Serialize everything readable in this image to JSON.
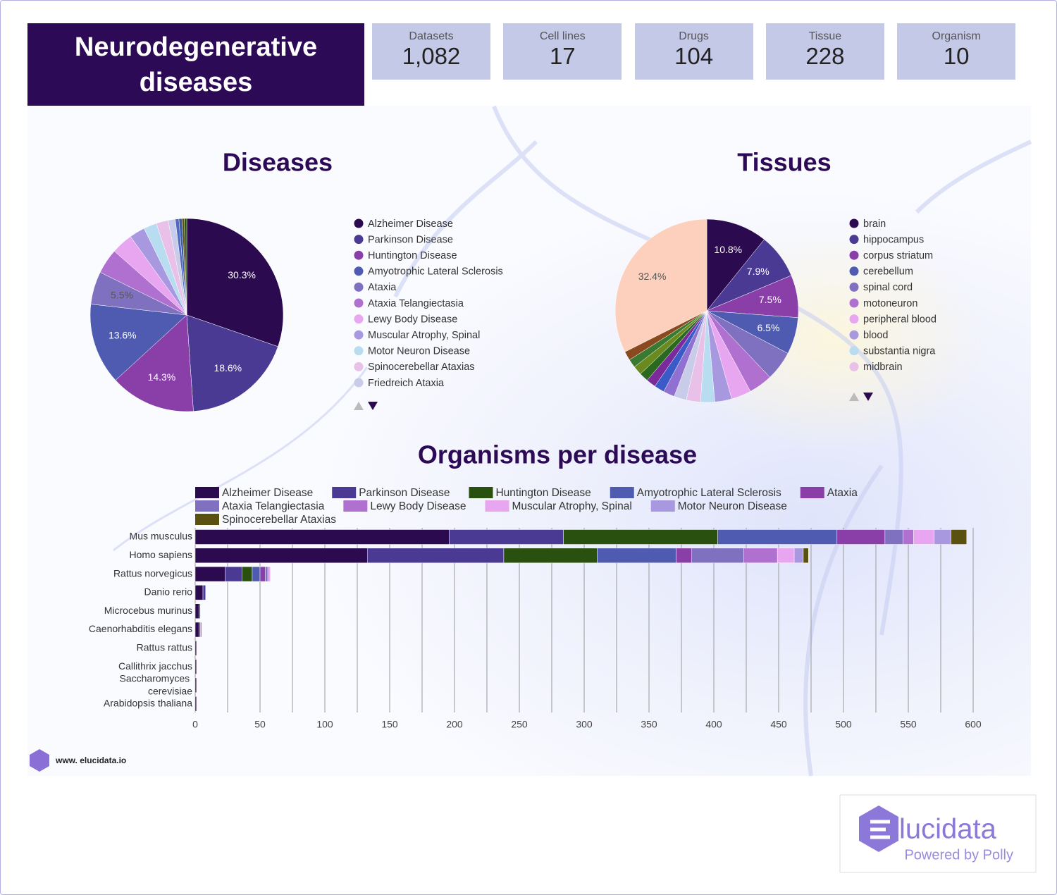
{
  "header": {
    "title": "Neurodegenerative diseases"
  },
  "stats": [
    {
      "label": "Datasets",
      "value": "1,082"
    },
    {
      "label": "Cell lines",
      "value": "17"
    },
    {
      "label": "Drugs",
      "value": "104"
    },
    {
      "label": "Tissue",
      "value": "228"
    },
    {
      "label": "Organism",
      "value": "10"
    }
  ],
  "chart_data": [
    {
      "type": "pie",
      "title": "Diseases",
      "categories": [
        "Alzheimer Disease",
        "Parkinson Disease",
        "Huntington Disease",
        "Amyotrophic Lateral Sclerosis",
        "Ataxia",
        "Ataxia Telangiectasia",
        "Lewy Body Disease",
        "Muscular Atrophy, Spinal",
        "Motor Neuron Disease",
        "Spinocerebellar Ataxias",
        "Friedreich Ataxia",
        null,
        null,
        null,
        null
      ],
      "values": [
        30.3,
        18.6,
        14.3,
        13.6,
        5.5,
        4.2,
        3.6,
        2.6,
        2.2,
        2.0,
        1.2,
        0.6,
        0.5,
        0.4,
        0.4
      ],
      "value_labels": [
        "30.3%",
        "18.6%",
        "14.3%",
        "13.6%",
        "5.5%",
        null,
        null,
        null,
        null,
        null,
        null,
        null,
        null,
        null,
        null
      ],
      "colors": [
        "#2b0a4f",
        "#4b3a94",
        "#8a3fa8",
        "#4f5bb0",
        "#8070c0",
        "#b070d0",
        "#e8a6f0",
        "#a898e0",
        "#b8dcf0",
        "#e8c0e8",
        "#c8cce8",
        "#4f6ac0",
        "#3a5aa8",
        "#5a5010",
        "#2a5010"
      ]
    },
    {
      "type": "pie",
      "title": "Tissues",
      "categories": [
        "brain",
        "hippocampus",
        "corpus striatum",
        "cerebellum",
        "spinal cord",
        "motoneuron",
        "peripheral blood",
        "blood",
        "substantia nigra",
        "midbrain",
        null,
        null,
        null,
        null,
        null,
        null,
        null,
        null,
        null
      ],
      "values": [
        10.8,
        7.9,
        7.5,
        6.5,
        5.2,
        4.2,
        3.5,
        3.0,
        2.5,
        2.5,
        2.2,
        2.0,
        1.8,
        1.7,
        1.6,
        1.6,
        1.5,
        1.6,
        32.4
      ],
      "value_labels": [
        "10.8%",
        "7.9%",
        "7.5%",
        "6.5%",
        null,
        null,
        null,
        null,
        null,
        null,
        null,
        null,
        null,
        null,
        null,
        null,
        null,
        null,
        "32.4%"
      ],
      "colors": [
        "#2b0a4f",
        "#4b3a94",
        "#8a3fa8",
        "#4f5bb0",
        "#8070c0",
        "#b070d0",
        "#e8a6f0",
        "#a898e0",
        "#b8dcf0",
        "#e8c0e8",
        "#c8cce8",
        "#9070d0",
        "#3a5ac8",
        "#7a2a9a",
        "#2a6a20",
        "#6a8a20",
        "#3a7a30",
        "#8a4a20",
        "#fcd0bc"
      ]
    },
    {
      "type": "bar",
      "orientation": "horizontal",
      "stacked": true,
      "title": "Organisms per disease",
      "categories": [
        "Mus musculus",
        "Homo sapiens",
        "Rattus norvegicus",
        "Danio rerio",
        "Microcebus murinus",
        "Caenorhabditis elegans",
        "Rattus rattus",
        "Callithrix jacchus",
        "Saccharomyces cerevisiae",
        "Arabidopsis thaliana"
      ],
      "series": [
        {
          "name": "Alzheimer Disease",
          "color": "#2b0a4f",
          "values": [
            196,
            133,
            23,
            6,
            3,
            3,
            1,
            1,
            1,
            1
          ]
        },
        {
          "name": "Parkinson Disease",
          "color": "#4b3a94",
          "values": [
            88,
            105,
            13,
            2,
            1,
            1,
            0,
            0,
            0,
            0
          ]
        },
        {
          "name": "Huntington Disease",
          "color": "#2a5010",
          "values": [
            119,
            72,
            8,
            0,
            0,
            0,
            0,
            0,
            0,
            0
          ]
        },
        {
          "name": "Amyotrophic Lateral Sclerosis",
          "color": "#4f5bb0",
          "values": [
            92,
            61,
            6,
            0,
            0,
            0,
            0,
            0,
            0,
            0
          ]
        },
        {
          "name": "Ataxia",
          "color": "#8a3fa8",
          "values": [
            37,
            12,
            4,
            0,
            0,
            0,
            0,
            0,
            0,
            0
          ]
        },
        {
          "name": "Ataxia Telangiectasia",
          "color": "#8070c0",
          "values": [
            14,
            40,
            2,
            0,
            0,
            0,
            0,
            0,
            0,
            0
          ]
        },
        {
          "name": "Lewy Body Disease",
          "color": "#b070d0",
          "values": [
            8,
            26,
            1,
            0,
            0,
            1,
            0,
            0,
            0,
            0
          ]
        },
        {
          "name": "Muscular Atrophy, Spinal",
          "color": "#e8a6f0",
          "values": [
            16,
            13,
            1,
            0,
            0,
            0,
            0,
            0,
            0,
            0
          ]
        },
        {
          "name": "Motor Neuron Disease",
          "color": "#a898e0",
          "values": [
            13,
            7,
            0,
            0,
            0,
            0,
            0,
            0,
            0,
            0
          ]
        },
        {
          "name": "Spinocerebellar Ataxias",
          "color": "#5a5010",
          "values": [
            12,
            4,
            0,
            0,
            0,
            0,
            0,
            0,
            0,
            0
          ]
        }
      ],
      "xlim": [
        0,
        600
      ],
      "xticks": [
        0,
        50,
        100,
        150,
        200,
        250,
        300,
        350,
        400,
        450,
        500,
        550,
        600
      ],
      "minor_xticks": [
        25,
        75,
        125,
        175,
        225,
        275,
        325,
        375,
        425,
        475,
        525,
        575
      ],
      "grid": true
    }
  ],
  "footer": {
    "url": "www. elucidata.io",
    "brand": "lucidata",
    "tagline": "Powered by Polly"
  }
}
